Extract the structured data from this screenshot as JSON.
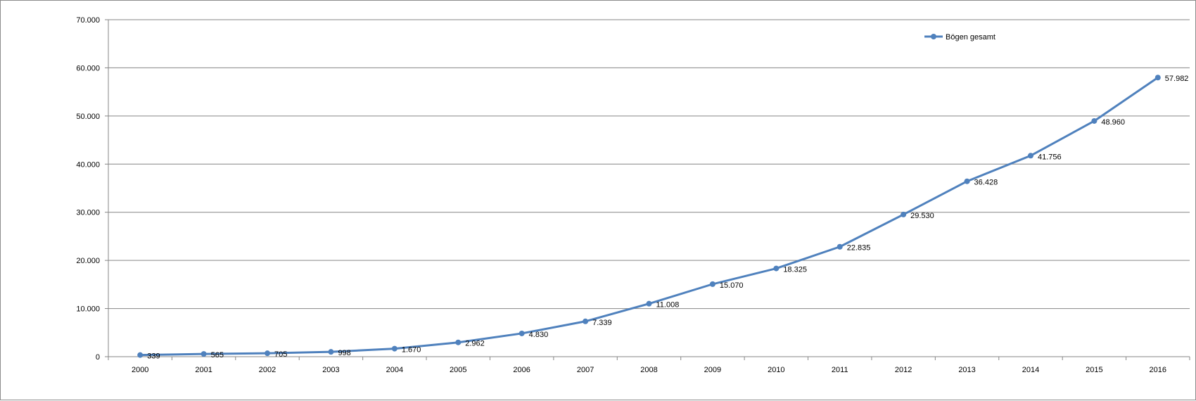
{
  "chart_data": {
    "type": "line",
    "title": "",
    "xlabel": "",
    "ylabel": "",
    "categories": [
      "2000",
      "2001",
      "2002",
      "2003",
      "2004",
      "2005",
      "2006",
      "2007",
      "2008",
      "2009",
      "2010",
      "2011",
      "2012",
      "2013",
      "2014",
      "2015",
      "2016"
    ],
    "series": [
      {
        "name": "Bögen gesamt",
        "values": [
          339,
          565,
          705,
          998,
          1670,
          2962,
          4830,
          7339,
          11008,
          15070,
          18325,
          22835,
          29530,
          36428,
          41756,
          48960,
          57982
        ],
        "labels": [
          "339",
          "565",
          "705",
          "998",
          "1.670",
          "2.962",
          "4.830",
          "7.339",
          "11.008",
          "15.070",
          "18.325",
          "22.835",
          "29.530",
          "36.428",
          "41.756",
          "48.960",
          "57.982"
        ],
        "color": "#4F81BD"
      }
    ],
    "ylim": [
      0,
      70000
    ],
    "yticks": [
      0,
      10000,
      20000,
      30000,
      40000,
      50000,
      60000,
      70000
    ],
    "ytick_labels": [
      "0",
      "10.000",
      "20.000",
      "30.000",
      "40.000",
      "50.000",
      "60.000",
      "70.000"
    ],
    "grid": true,
    "legend_position": "top-right"
  }
}
